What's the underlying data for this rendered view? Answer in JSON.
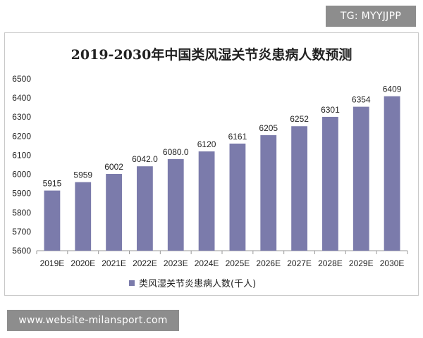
{
  "badges": {
    "top_right": "TG: MYYJJPP",
    "bottom_left": "www.website-milansport.com"
  },
  "chart_data": {
    "type": "bar",
    "title": "2019-2030年中国类风湿关节炎患病人数预测",
    "categories": [
      "2019E",
      "2020E",
      "2021E",
      "2022E",
      "2023E",
      "2024E",
      "2025E",
      "2026E",
      "2027E",
      "2028E",
      "2029E",
      "2030E"
    ],
    "series": [
      {
        "name": "类风湿关节炎患病人数(千人)",
        "values": [
          5915,
          5959,
          6002,
          6042.0,
          6080.0,
          6120,
          6161,
          6205,
          6252,
          6301,
          6354,
          6409
        ],
        "labels": [
          "5915",
          "5959",
          "6002",
          "6042.0",
          "6080.0",
          "6120",
          "6161",
          "6205",
          "6252",
          "6301",
          "6354",
          "6409"
        ]
      }
    ],
    "ylim": [
      5600,
      6500
    ],
    "yticks": [
      "5600",
      "5700",
      "5800",
      "5900",
      "6000",
      "6100",
      "6200",
      "6300",
      "6400",
      "6500"
    ],
    "xlabel": "",
    "ylabel": "",
    "legend_position": "bottom",
    "bar_color": "#7b7bab",
    "grid": false
  }
}
